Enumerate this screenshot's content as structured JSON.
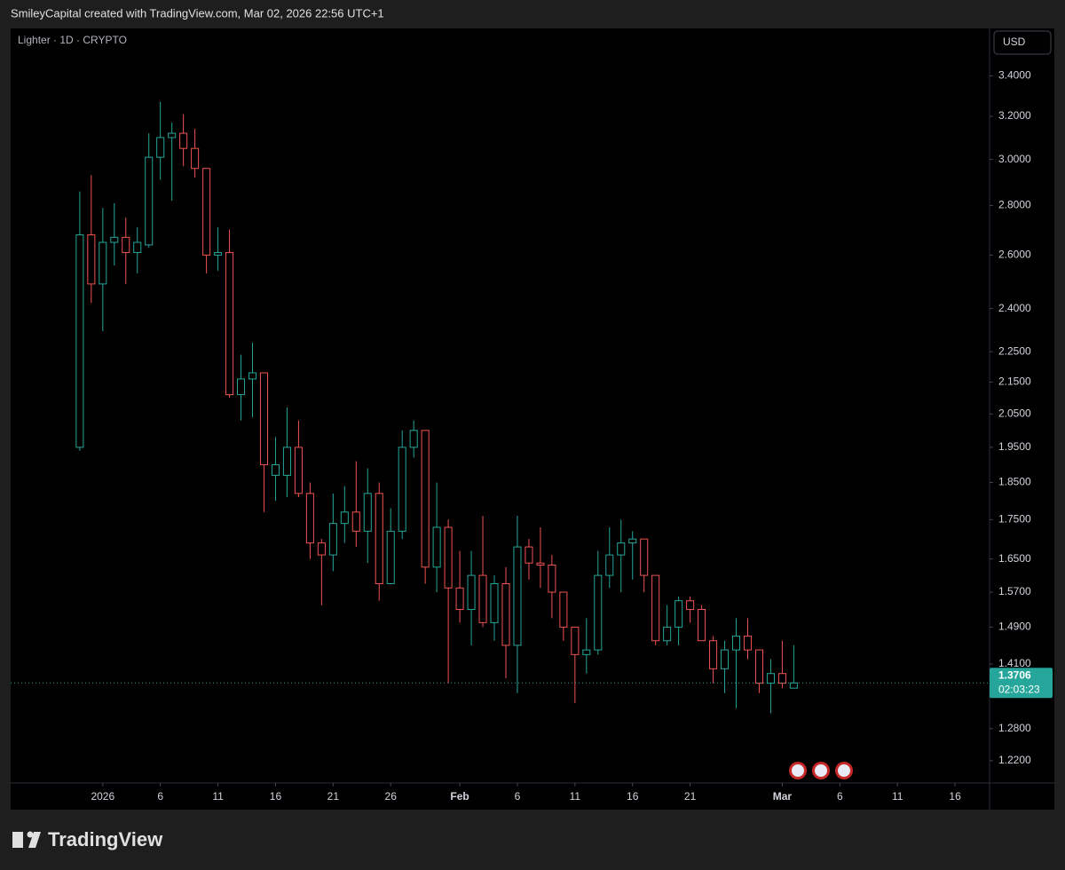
{
  "header": {
    "attribution": "SmileyCapital created with TradingView.com, Mar 02, 2026 22:56 UTC+1",
    "logo": "TradingView"
  },
  "chart_data": {
    "type": "candlestick",
    "title": "Lighter · 1D · CRYPTO",
    "currency": "USD",
    "countdown": "02:03:23",
    "log_scale": true,
    "grid": false,
    "up_color": "#26a69a",
    "down_color": "#ef5350",
    "x": [
      "2025-12-30",
      "2025-12-31",
      "2026-01-01",
      "2026-01-02",
      "2026-01-03",
      "2026-01-04",
      "2026-01-05",
      "2026-01-06",
      "2026-01-07",
      "2026-01-08",
      "2026-01-09",
      "2026-01-10",
      "2026-01-11",
      "2026-01-12",
      "2026-01-13",
      "2026-01-14",
      "2026-01-15",
      "2026-01-16",
      "2026-01-17",
      "2026-01-18",
      "2026-01-19",
      "2026-01-20",
      "2026-01-21",
      "2026-01-22",
      "2026-01-23",
      "2026-01-24",
      "2026-01-25",
      "2026-01-26",
      "2026-01-27",
      "2026-01-28",
      "2026-01-29",
      "2026-01-30",
      "2026-01-31",
      "2026-02-01",
      "2026-02-02",
      "2026-02-03",
      "2026-02-04",
      "2026-02-05",
      "2026-02-06",
      "2026-02-07",
      "2026-02-08",
      "2026-02-09",
      "2026-02-10",
      "2026-02-11",
      "2026-02-12",
      "2026-02-13",
      "2026-02-14",
      "2026-02-15",
      "2026-02-16",
      "2026-02-17",
      "2026-02-18",
      "2026-02-19",
      "2026-02-20",
      "2026-02-21",
      "2026-02-22",
      "2026-02-23",
      "2026-02-24",
      "2026-02-25",
      "2026-02-26",
      "2026-02-27",
      "2026-02-28",
      "2026-03-01",
      "2026-03-02"
    ],
    "open": [
      1.95,
      2.68,
      2.49,
      2.65,
      2.67,
      2.61,
      2.64,
      3.01,
      3.1,
      3.12,
      3.05,
      2.96,
      2.6,
      2.61,
      2.11,
      2.16,
      2.18,
      1.87,
      1.87,
      1.95,
      1.82,
      1.69,
      1.66,
      1.74,
      1.77,
      1.72,
      1.82,
      1.59,
      1.72,
      1.95,
      2.0,
      1.63,
      1.73,
      1.58,
      1.53,
      1.61,
      1.5,
      1.59,
      1.45,
      1.68,
      1.64,
      1.635,
      1.57,
      1.49,
      1.43,
      1.44,
      1.61,
      1.66,
      1.69,
      1.7,
      1.61,
      1.46,
      1.49,
      1.55,
      1.53,
      1.46,
      1.4,
      1.44,
      1.47,
      1.44,
      1.37,
      1.39,
      1.36
    ],
    "high": [
      2.86,
      2.93,
      2.79,
      2.81,
      2.75,
      2.71,
      3.12,
      3.27,
      3.17,
      3.21,
      3.14,
      2.96,
      2.71,
      2.7,
      2.24,
      2.28,
      2.18,
      1.98,
      2.07,
      2.03,
      1.85,
      1.7,
      1.82,
      1.84,
      1.91,
      1.89,
      1.85,
      1.78,
      2.0,
      2.03,
      2.0,
      1.85,
      1.75,
      1.67,
      1.67,
      1.76,
      1.61,
      1.63,
      1.76,
      1.7,
      1.73,
      1.66,
      1.57,
      1.49,
      1.51,
      1.67,
      1.73,
      1.75,
      1.72,
      1.7,
      1.61,
      1.54,
      1.56,
      1.56,
      1.54,
      1.47,
      1.46,
      1.51,
      1.51,
      1.44,
      1.42,
      1.46,
      1.45
    ],
    "low": [
      1.94,
      2.42,
      2.32,
      2.56,
      2.49,
      2.53,
      2.63,
      2.91,
      2.82,
      2.97,
      2.92,
      2.53,
      2.54,
      2.1,
      2.03,
      2.04,
      1.77,
      1.8,
      1.81,
      1.81,
      1.65,
      1.54,
      1.62,
      1.69,
      1.68,
      1.64,
      1.55,
      1.59,
      1.7,
      1.92,
      1.59,
      1.57,
      1.37,
      1.5,
      1.45,
      1.49,
      1.46,
      1.38,
      1.35,
      1.6,
      1.58,
      1.51,
      1.46,
      1.33,
      1.39,
      1.43,
      1.58,
      1.57,
      1.6,
      1.57,
      1.45,
      1.45,
      1.45,
      1.5,
      1.46,
      1.37,
      1.35,
      1.32,
      1.42,
      1.35,
      1.31,
      1.36,
      1.36
    ],
    "close": [
      2.68,
      2.49,
      2.65,
      2.67,
      2.61,
      2.65,
      3.01,
      3.1,
      3.12,
      3.05,
      2.96,
      2.6,
      2.61,
      2.11,
      2.16,
      2.18,
      1.9,
      1.9,
      1.95,
      1.82,
      1.69,
      1.66,
      1.74,
      1.77,
      1.72,
      1.82,
      1.59,
      1.72,
      1.95,
      2.0,
      1.63,
      1.73,
      1.58,
      1.53,
      1.61,
      1.5,
      1.59,
      1.45,
      1.68,
      1.64,
      1.635,
      1.57,
      1.49,
      1.43,
      1.44,
      1.61,
      1.66,
      1.69,
      1.7,
      1.61,
      1.46,
      1.49,
      1.55,
      1.53,
      1.46,
      1.4,
      1.44,
      1.47,
      1.44,
      1.37,
      1.39,
      1.37,
      1.3706
    ],
    "xlim": [
      "2025-12-24",
      "2026-03-19"
    ],
    "xticks": [
      {
        "value": "2026-01-01",
        "label": "2026"
      },
      {
        "value": "2026-01-06",
        "label": "6"
      },
      {
        "value": "2026-01-11",
        "label": "11"
      },
      {
        "value": "2026-01-16",
        "label": "16"
      },
      {
        "value": "2026-01-21",
        "label": "21"
      },
      {
        "value": "2026-01-26",
        "label": "26"
      },
      {
        "value": "2026-02-01",
        "label": "Feb"
      },
      {
        "value": "2026-02-06",
        "label": "6"
      },
      {
        "value": "2026-02-11",
        "label": "11"
      },
      {
        "value": "2026-02-16",
        "label": "16"
      },
      {
        "value": "2026-02-21",
        "label": "21"
      },
      {
        "value": "2026-03-01",
        "label": "Mar"
      },
      {
        "value": "2026-03-06",
        "label": "6"
      },
      {
        "value": "2026-03-11",
        "label": "11"
      },
      {
        "value": "2026-03-16",
        "label": "16"
      }
    ],
    "ylim": [
      1.18,
      3.65
    ],
    "yticks": [
      {
        "value": 3.4,
        "label": "3.4000"
      },
      {
        "value": 3.2,
        "label": "3.2000"
      },
      {
        "value": 3.0,
        "label": "3.0000"
      },
      {
        "value": 2.8,
        "label": "2.8000"
      },
      {
        "value": 2.6,
        "label": "2.6000"
      },
      {
        "value": 2.4,
        "label": "2.4000"
      },
      {
        "value": 2.25,
        "label": "2.2500"
      },
      {
        "value": 2.15,
        "label": "2.1500"
      },
      {
        "value": 2.05,
        "label": "2.0500"
      },
      {
        "value": 1.95,
        "label": "1.9500"
      },
      {
        "value": 1.85,
        "label": "1.8500"
      },
      {
        "value": 1.75,
        "label": "1.7500"
      },
      {
        "value": 1.65,
        "label": "1.6500"
      },
      {
        "value": 1.57,
        "label": "1.5700"
      },
      {
        "value": 1.49,
        "label": "1.4900"
      },
      {
        "value": 1.41,
        "label": "1.4100"
      },
      {
        "value": 1.28,
        "label": "1.2800"
      },
      {
        "value": 1.22,
        "label": "1.2200"
      }
    ]
  }
}
